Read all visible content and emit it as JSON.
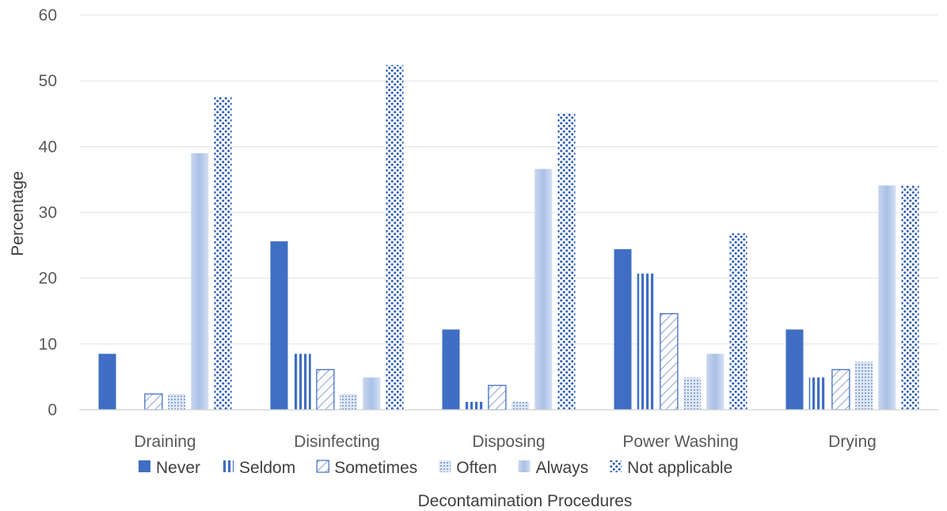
{
  "chart_data": {
    "type": "bar",
    "title": "",
    "xlabel": "Decontamination Procedures",
    "ylabel": "Percentage",
    "ylim": [
      0,
      60
    ],
    "yticks": [
      0,
      10,
      20,
      30,
      40,
      50,
      60
    ],
    "grid": true,
    "legend_position": "bottom",
    "categories": [
      "Draining",
      "Disinfecting",
      "Disposing",
      "Power Washing",
      "Drying"
    ],
    "series": [
      {
        "name": "Never",
        "pattern": "solid",
        "color": "#3f6ec4",
        "values": [
          8.5,
          25.6,
          12.2,
          24.4,
          12.2
        ]
      },
      {
        "name": "Seldom",
        "pattern": "vertical-stripes",
        "color": "#3f6ec4",
        "values": [
          0,
          8.5,
          1.2,
          20.7,
          4.9
        ]
      },
      {
        "name": "Sometimes",
        "pattern": "diagonal-hatch",
        "color": "#3f6ec4",
        "values": [
          2.4,
          6.1,
          3.7,
          14.6,
          6.1
        ]
      },
      {
        "name": "Often",
        "pattern": "fine-dots",
        "color": "#7f9fd6",
        "values": [
          2.4,
          2.4,
          1.2,
          4.9,
          7.3
        ]
      },
      {
        "name": "Always",
        "pattern": "gradient",
        "color": "#aec3e8",
        "values": [
          39.0,
          4.9,
          36.6,
          8.5,
          34.1
        ]
      },
      {
        "name": "Not applicable",
        "pattern": "large-dots",
        "color": "#3f6ec4",
        "values": [
          47.6,
          52.4,
          45.1,
          26.8,
          34.1
        ]
      }
    ]
  }
}
